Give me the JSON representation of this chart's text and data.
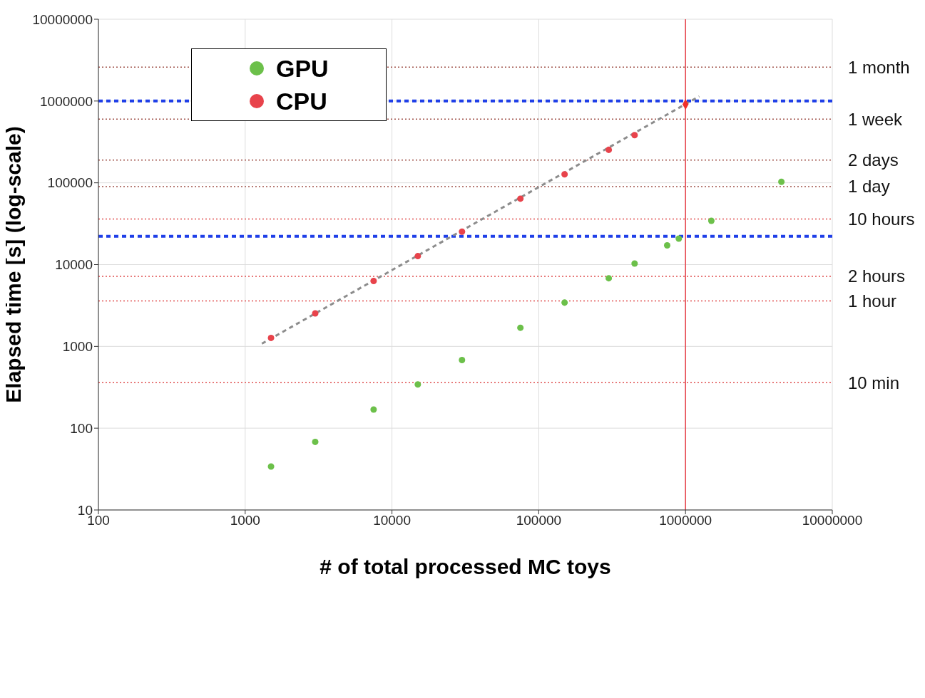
{
  "chart_data": {
    "type": "scatter",
    "xlabel": "# of total processed MC toys",
    "ylabel": "Elapsed time [s] (log-scale)",
    "log": "xy",
    "grid": true,
    "legend": "top left",
    "marker": "circle",
    "xlim": [
      100,
      10000000
    ],
    "xticks": [
      100,
      1000,
      10000,
      100000,
      1000000,
      10000000
    ],
    "ylim": [
      10,
      10000000
    ],
    "yticks": [
      10,
      100,
      1000,
      10000,
      100000,
      1000000,
      10000000
    ],
    "series": [
      {
        "name": "GPU",
        "color": "#6cc04a",
        "x": [
          1500,
          3000,
          7500,
          15000,
          30000,
          75000,
          150000,
          300000,
          450000,
          750000,
          900000,
          1500000,
          4500000
        ],
        "values": [
          34,
          68,
          169,
          343,
          681,
          1690,
          3430,
          6810,
          10300,
          17200,
          20800,
          34300,
          103000
        ]
      },
      {
        "name": "CPU",
        "color": "#e8434b",
        "x": [
          1500,
          3000,
          7500,
          15000,
          30000,
          75000,
          150000,
          300000,
          450000
        ],
        "values": [
          1270,
          2530,
          6300,
          12700,
          25300,
          64000,
          127000,
          253000,
          383000
        ]
      },
      {
        "type": "line",
        "color": "#8c8c8c",
        "line_style": "dashed",
        "marker": "none",
        "x": [
          1300,
          1240000
        ],
        "values": [
          1080,
          1140000
        ]
      },
      {
        "color": "#f0302a",
        "marker": "diamond",
        "x": [
          1000000
        ],
        "values": [
          910000
        ]
      }
    ],
    "ref_lines": [
      {
        "axis": "y",
        "value": 2600000,
        "label": "1 month",
        "color": "#a0524a",
        "line_style": "dotted"
      },
      {
        "axis": "y",
        "value": 1000000,
        "color": "#1f3fe8",
        "line_style": "dashed"
      },
      {
        "axis": "y",
        "value": 600000,
        "label": "1 week",
        "color": "#a0524a",
        "line_style": "dotted"
      },
      {
        "axis": "y",
        "value": 190000,
        "label": "2 days",
        "color": "#a0524a",
        "line_style": "dotted"
      },
      {
        "axis": "y",
        "value": 90000,
        "label": "1 day",
        "color": "#a0524a",
        "line_style": "dotted"
      },
      {
        "axis": "y",
        "value": 36000,
        "label": "10 hours",
        "color": "#e05050",
        "line_style": "dotted"
      },
      {
        "axis": "y",
        "value": 22200,
        "color": "#1f3fe8",
        "line_style": "dashed"
      },
      {
        "axis": "y",
        "value": 7200,
        "label": "2 hours",
        "color": "#e05050",
        "line_style": "dotted"
      },
      {
        "axis": "y",
        "value": 3600,
        "label": "1 hour",
        "color": "#e05050",
        "line_style": "dotted"
      },
      {
        "axis": "y",
        "value": 360,
        "label": "10 min",
        "color": "#e05050",
        "line_style": "dotted"
      },
      {
        "axis": "x",
        "value": 1000000,
        "color": "#e8434b",
        "line_style": "solid"
      }
    ]
  }
}
